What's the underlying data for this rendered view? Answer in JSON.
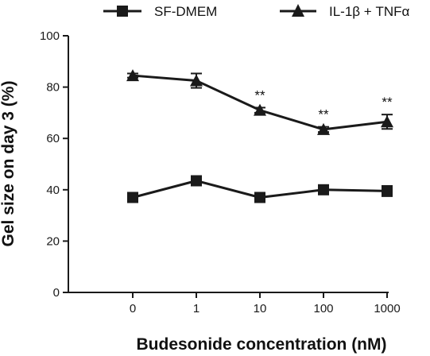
{
  "chart_data": {
    "type": "line",
    "xlabel": "Budesonide concentration (nM)",
    "ylabel": "Gel size on day 3 (%)",
    "categories": [
      "0",
      "1",
      "10",
      "100",
      "1000"
    ],
    "ylim": [
      0,
      100
    ],
    "yticks": [
      "0",
      "20",
      "40",
      "60",
      "80",
      "100"
    ],
    "legend_position": "top",
    "series": [
      {
        "name": "SF-DMEM",
        "marker": "square",
        "color": "#1a1a1a",
        "values": [
          37,
          43.5,
          37,
          40,
          39.5
        ],
        "errors": [
          0.8,
          1.2,
          0.8,
          1.2,
          2
        ],
        "annotations": [
          "",
          "",
          "",
          "",
          ""
        ]
      },
      {
        "name": "IL-1β + TNFα",
        "marker": "triangle",
        "color": "#1a1a1a",
        "values": [
          84.5,
          82.5,
          71,
          63.5,
          66.5
        ],
        "errors": [
          0.8,
          2.8,
          1.0,
          1.0,
          2.8
        ],
        "annotations": [
          "",
          "",
          "**",
          "**",
          "**"
        ]
      }
    ]
  }
}
